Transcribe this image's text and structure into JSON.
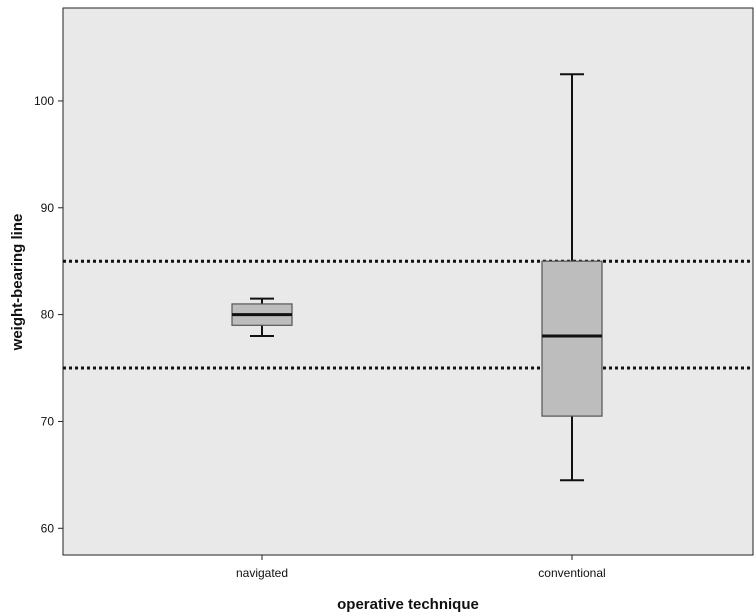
{
  "chart_data": {
    "type": "boxplot",
    "xlabel": "operative technique",
    "ylabel": "weight-bearing line",
    "ylim": [
      57.5,
      108.7
    ],
    "yticks": [
      60,
      70,
      80,
      90,
      100
    ],
    "ytick_labels": [
      "60",
      "70",
      "80",
      "90",
      "100"
    ],
    "categories": [
      "navigated",
      "conventional"
    ],
    "boxes": [
      {
        "category": "navigated",
        "whisker_low": 78,
        "q1": 79,
        "median": 80,
        "q3": 81,
        "whisker_high": 81.5
      },
      {
        "category": "conventional",
        "whisker_low": 64.5,
        "q1": 70.5,
        "median": 78,
        "q3": 85,
        "whisker_high": 102.5
      }
    ],
    "reference_lines": [
      {
        "value": 85,
        "style": "dotted"
      },
      {
        "value": 75,
        "style": "dotted"
      }
    ],
    "grid": false,
    "colors": {
      "plot_background": "#e9e9e9",
      "box_fill": "#bdbdbd",
      "lines": "#111111"
    }
  }
}
